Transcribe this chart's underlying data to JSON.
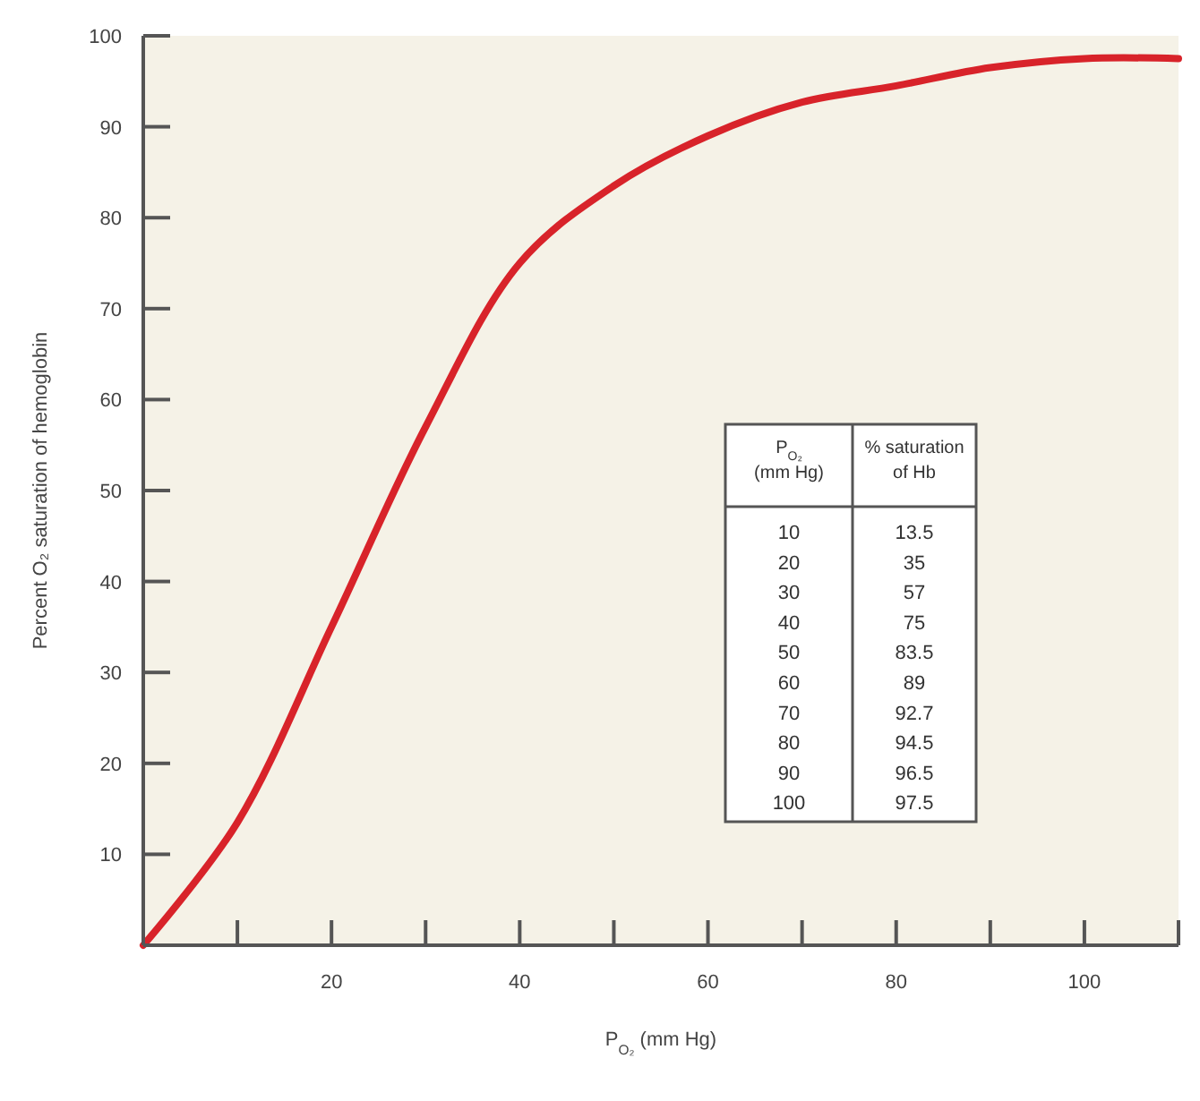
{
  "chart_data": {
    "type": "line",
    "xlabel": "P$_{O₂}$ (mm Hg)",
    "ylabel": "Percent O₂ saturation of hemoglobin",
    "x": [
      0,
      10,
      20,
      30,
      40,
      50,
      60,
      70,
      80,
      90,
      100,
      110
    ],
    "series": [
      {
        "color": "#d8232a",
        "values": [
          0,
          13.5,
          35,
          57,
          75,
          83.5,
          89,
          92.7,
          94.5,
          96.5,
          97.5,
          97.5
        ]
      }
    ],
    "annotations": [
      "P$_{O₂}$\n(mm Hg)",
      "% saturation\nof Hb",
      "10",
      "13.5",
      "20",
      "35",
      "30",
      "57",
      "40",
      "75",
      "50",
      "83.5",
      "60",
      "89",
      "70",
      "92.7",
      "80",
      "94.5",
      "90",
      "96.5",
      "100",
      "97.5"
    ],
    "xlim": [
      0,
      110
    ],
    "xticks": [
      {
        "value": 10,
        "label": null
      },
      20,
      {
        "value": 30,
        "label": null
      },
      40,
      {
        "value": 50,
        "label": null
      },
      60,
      {
        "value": 70,
        "label": null
      },
      80,
      {
        "value": 90,
        "label": null
      },
      100,
      {
        "value": 110,
        "label": null
      }
    ],
    "ylim": [
      0,
      100
    ],
    "yticks": [
      10,
      20,
      30,
      40,
      50,
      60,
      70,
      80,
      90,
      100
    ],
    "grid": false,
    "marker": "none",
    "line_style": "solid"
  }
}
